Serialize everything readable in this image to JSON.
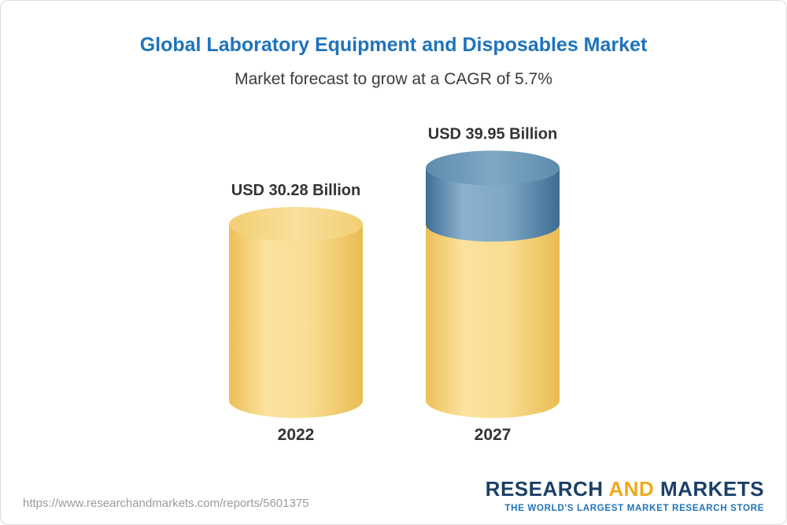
{
  "chart_data": {
    "type": "bar",
    "style": "3d-cylinder",
    "title": "Global Laboratory Equipment and Disposables Market",
    "subtitle": "Market forecast to grow at a CAGR of 5.7%",
    "categories": [
      "2022",
      "2027"
    ],
    "values": [
      30.28,
      39.95
    ],
    "value_labels": [
      "USD 30.28 Billion",
      "USD 39.95 Billion"
    ],
    "unit": "USD Billion",
    "cagr_percent": 5.7,
    "ylim": [
      0,
      45
    ],
    "legend": "none",
    "grid": "off",
    "colors": {
      "base_segment_gold": "#f5cf74",
      "growth_segment_blue": "#5b89ad"
    }
  },
  "footer": {
    "url": "https://www.researchandmarkets.com/reports/5601375",
    "logo": {
      "word1": "RESEARCH",
      "word2": "AND",
      "word3": "MARKETS",
      "tagline": "THE WORLD'S LARGEST MARKET RESEARCH STORE"
    }
  },
  "colors": {
    "title_blue": "#1e73bc",
    "text_dark": "#333333",
    "url_gray": "#9b9b9b",
    "logo_navy": "#1b4068",
    "logo_gold": "#f0a81d",
    "tagline_blue": "#1e73b8"
  }
}
